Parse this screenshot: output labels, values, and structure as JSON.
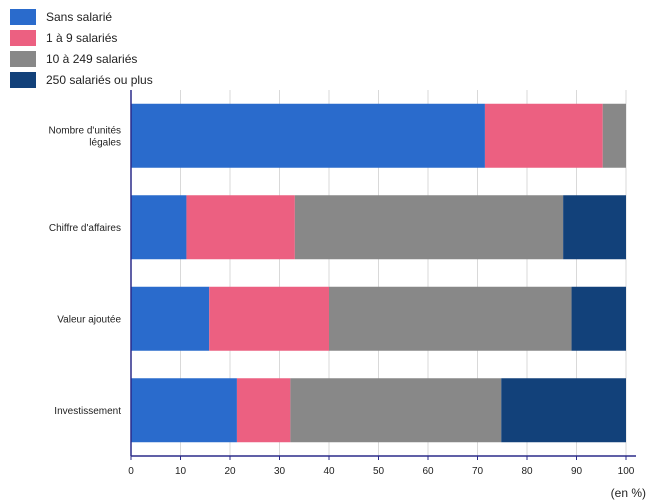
{
  "chart_data": {
    "type": "bar",
    "orientation": "horizontal",
    "stacked": true,
    "categories": [
      "Nombre d'unités\nlégales",
      "Chiffre d'affaires",
      "Valeur ajoutée",
      "Investissement"
    ],
    "series": [
      {
        "name": "Sans salarié",
        "color": "#2a6bcc",
        "values": [
          71.5,
          11.2,
          15.8,
          21.4
        ]
      },
      {
        "name": "1 à 9 salariés",
        "color": "#ec6081",
        "values": [
          23.8,
          21.9,
          24.2,
          10.8
        ]
      },
      {
        "name": "10 à 249 salariés",
        "color": "#888888",
        "values": [
          4.7,
          54.2,
          49.0,
          42.6
        ]
      },
      {
        "name": "250 salariés ou plus",
        "color": "#12417a",
        "values": [
          0.0,
          12.7,
          11.0,
          25.2
        ]
      }
    ],
    "xlim": [
      0,
      100
    ],
    "xticks": [
      0,
      10,
      20,
      30,
      40,
      50,
      60,
      70,
      80,
      90,
      100
    ],
    "unit": "(en %)",
    "grid": true,
    "legend_position": "top-left"
  }
}
